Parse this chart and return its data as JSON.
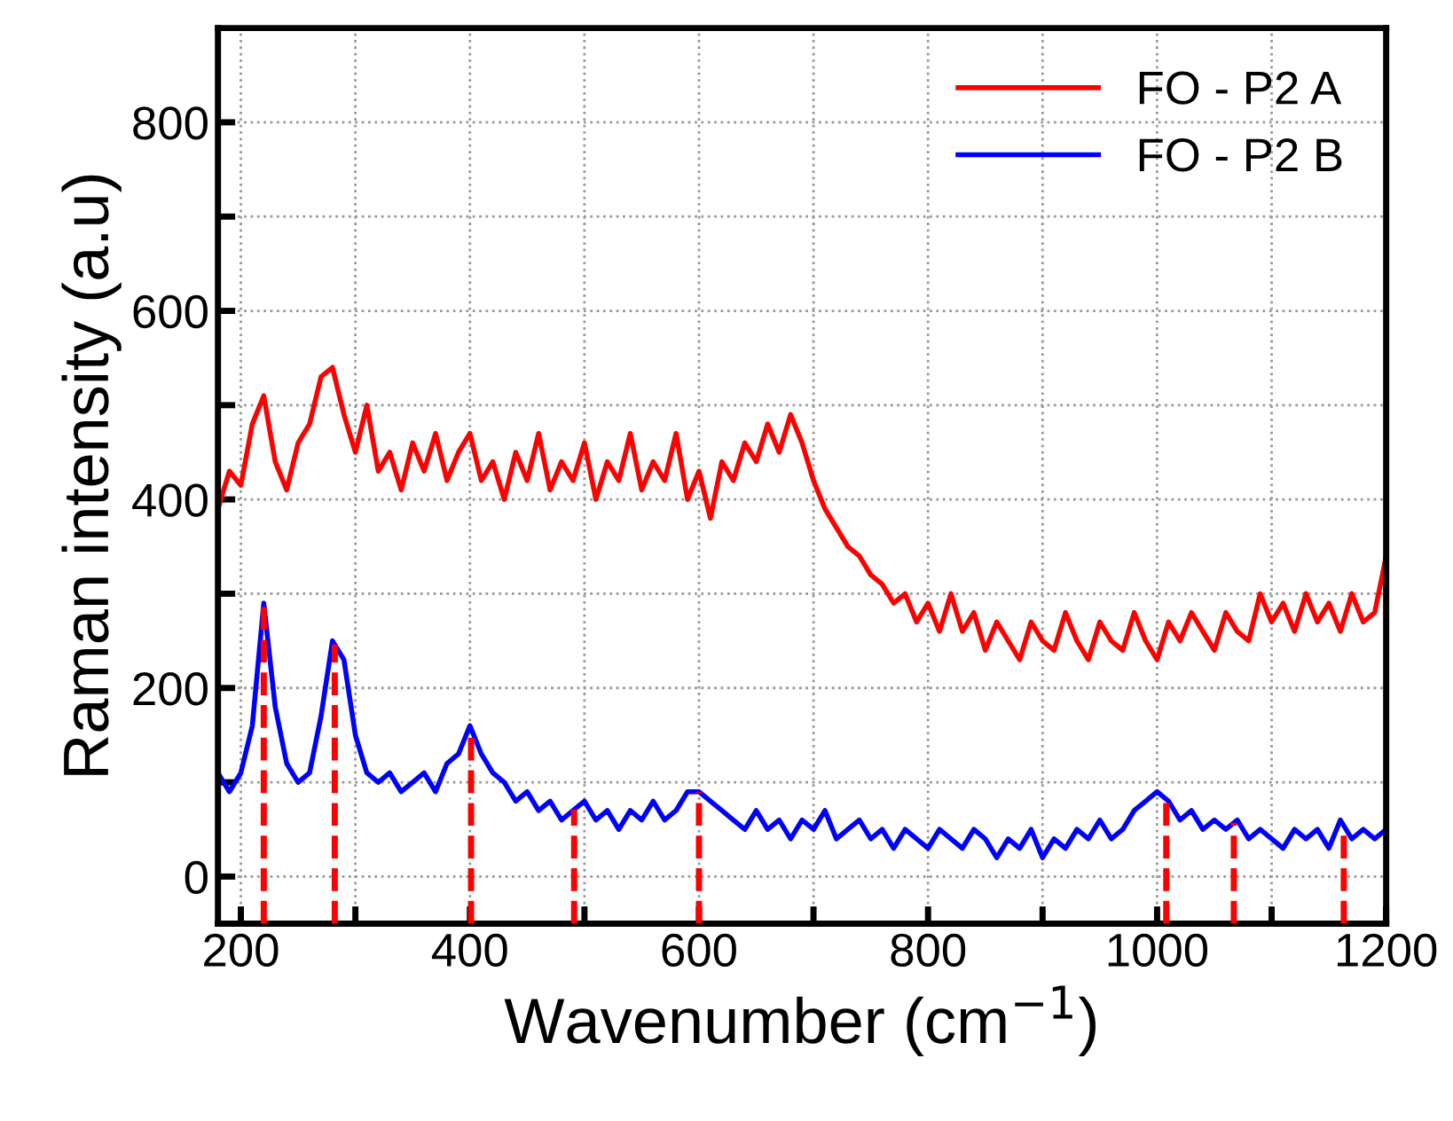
{
  "chart_data": {
    "type": "line",
    "xlabel": "Wavenumber (cm$^{−1}$)",
    "ylabel": "Raman intensity (a.u)",
    "x": [
      180,
      190,
      200,
      210,
      220,
      230,
      240,
      250,
      260,
      270,
      280,
      290,
      300,
      310,
      320,
      330,
      340,
      350,
      360,
      370,
      380,
      390,
      400,
      410,
      420,
      430,
      440,
      450,
      460,
      470,
      480,
      490,
      500,
      510,
      520,
      530,
      540,
      550,
      560,
      570,
      580,
      590,
      600,
      610,
      620,
      630,
      640,
      650,
      660,
      670,
      680,
      690,
      700,
      710,
      720,
      730,
      740,
      750,
      760,
      770,
      780,
      790,
      800,
      810,
      820,
      830,
      840,
      850,
      860,
      870,
      880,
      890,
      900,
      910,
      920,
      930,
      940,
      950,
      960,
      970,
      980,
      990,
      1000,
      1010,
      1020,
      1030,
      1040,
      1050,
      1060,
      1070,
      1080,
      1090,
      1100,
      1110,
      1120,
      1130,
      1140,
      1150,
      1160,
      1170,
      1180,
      1190,
      1200
    ],
    "series": [
      {
        "name": "FO - P2 A",
        "color": "#ff0000",
        "values": [
          390,
          430,
          415,
          480,
          510,
          440,
          410,
          460,
          480,
          530,
          540,
          490,
          450,
          500,
          430,
          450,
          410,
          460,
          430,
          470,
          420,
          450,
          470,
          420,
          440,
          400,
          450,
          420,
          470,
          410,
          440,
          420,
          460,
          400,
          440,
          420,
          470,
          410,
          440,
          420,
          470,
          400,
          430,
          380,
          440,
          420,
          460,
          440,
          480,
          450,
          490,
          460,
          420,
          390,
          370,
          350,
          340,
          320,
          310,
          290,
          300,
          270,
          290,
          260,
          300,
          260,
          280,
          240,
          270,
          250,
          230,
          270,
          250,
          240,
          280,
          250,
          230,
          270,
          250,
          240,
          280,
          250,
          230,
          270,
          250,
          280,
          260,
          240,
          280,
          260,
          250,
          300,
          270,
          290,
          260,
          300,
          270,
          290,
          260,
          300,
          270,
          280,
          340
        ]
      },
      {
        "name": "FO - P2 B",
        "color": "#0000ff",
        "values": [
          110,
          90,
          110,
          160,
          290,
          180,
          120,
          100,
          110,
          170,
          250,
          230,
          150,
          110,
          100,
          110,
          90,
          100,
          110,
          90,
          120,
          130,
          160,
          130,
          110,
          100,
          80,
          90,
          70,
          80,
          60,
          70,
          80,
          60,
          70,
          50,
          70,
          60,
          80,
          60,
          70,
          90,
          90,
          80,
          70,
          60,
          50,
          70,
          50,
          60,
          40,
          60,
          50,
          70,
          40,
          50,
          60,
          40,
          50,
          30,
          50,
          40,
          30,
          50,
          40,
          30,
          50,
          40,
          20,
          40,
          30,
          50,
          20,
          40,
          30,
          50,
          40,
          60,
          40,
          50,
          70,
          80,
          90,
          80,
          60,
          70,
          50,
          60,
          50,
          60,
          40,
          50,
          40,
          30,
          50,
          40,
          50,
          30,
          60,
          40,
          50,
          40,
          50
        ]
      }
    ],
    "xlim": [
      180,
      1200
    ],
    "ylim": [
      -50,
      900
    ],
    "xticks": [
      200,
      {
        "value": 300,
        "label": null
      },
      400,
      {
        "value": 500,
        "label": null
      },
      600,
      {
        "value": 700,
        "label": null
      },
      800,
      {
        "value": 900,
        "label": null
      },
      1000,
      {
        "value": 1100,
        "label": null
      },
      1200
    ],
    "yticks": [
      0,
      {
        "value": 100,
        "label": null
      },
      200,
      {
        "value": 300,
        "label": null
      },
      400,
      {
        "value": 500,
        "label": null
      },
      600,
      {
        "value": 700,
        "label": null
      },
      800
    ],
    "ref_lines": [
      {
        "axis": "x",
        "value": 220,
        "color": "#ff0000",
        "line_style": "dashed"
      },
      {
        "axis": "x",
        "value": 282,
        "color": "#ff0000",
        "line_style": "dashed"
      },
      {
        "axis": "x",
        "value": 401,
        "color": "#ff0000",
        "line_style": "dashed"
      },
      {
        "axis": "x",
        "value": 491,
        "color": "#ff0000",
        "line_style": "dashed"
      },
      {
        "axis": "x",
        "value": 600,
        "color": "#ff0000",
        "line_style": "dashed"
      },
      {
        "axis": "x",
        "value": 1008,
        "color": "#ff0000",
        "line_style": "dashed"
      },
      {
        "axis": "x",
        "value": 1067,
        "color": "#ff0000",
        "line_style": "dashed"
      },
      {
        "axis": "x",
        "value": 1163,
        "color": "#ff0000",
        "line_style": "dashed"
      }
    ],
    "grid": true,
    "legend": "top right",
    "marker": "none",
    "line_style": "solid"
  }
}
